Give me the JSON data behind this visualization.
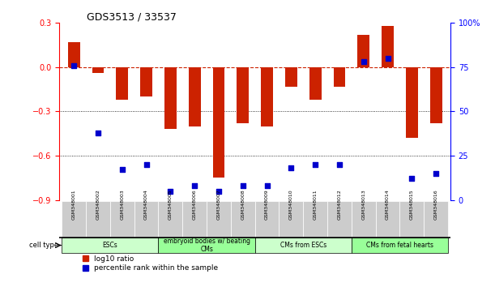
{
  "title": "GDS3513 / 33537",
  "samples": [
    "GSM348001",
    "GSM348002",
    "GSM348003",
    "GSM348004",
    "GSM348005",
    "GSM348006",
    "GSM348007",
    "GSM348008",
    "GSM348009",
    "GSM348010",
    "GSM348011",
    "GSM348012",
    "GSM348013",
    "GSM348014",
    "GSM348015",
    "GSM348016"
  ],
  "log10_ratio": [
    0.17,
    -0.04,
    -0.22,
    -0.2,
    -0.42,
    -0.4,
    -0.75,
    -0.38,
    -0.4,
    -0.13,
    -0.22,
    -0.13,
    0.22,
    0.28,
    -0.48,
    -0.38
  ],
  "percentile_rank": [
    76,
    38,
    17,
    20,
    5,
    8,
    5,
    8,
    8,
    18,
    20,
    20,
    78,
    80,
    12,
    15
  ],
  "bar_color": "#cc2200",
  "dot_color": "#0000cc",
  "ylim_left": [
    -0.9,
    0.3
  ],
  "ylim_right": [
    0,
    100
  ],
  "yticks_left": [
    -0.9,
    -0.6,
    -0.3,
    0.0,
    0.3
  ],
  "yticks_right": [
    0,
    25,
    50,
    75,
    100
  ],
  "ytick_labels_right": [
    "0",
    "25",
    "50",
    "75",
    "100%"
  ],
  "hline_y": 0.0,
  "dotted_lines": [
    -0.3,
    -0.6
  ],
  "cell_groups": [
    {
      "label": "ESCs",
      "start": 0,
      "end": 3,
      "color": "#ccffcc"
    },
    {
      "label": "embryoid bodies w/ beating\nCMs",
      "start": 4,
      "end": 7,
      "color": "#99ff99"
    },
    {
      "label": "CMs from ESCs",
      "start": 8,
      "end": 11,
      "color": "#ccffcc"
    },
    {
      "label": "CMs from fetal hearts",
      "start": 12,
      "end": 15,
      "color": "#99ff99"
    }
  ],
  "cell_type_label": "cell type",
  "legend_items": [
    {
      "color": "#cc2200",
      "label": "log10 ratio"
    },
    {
      "color": "#0000cc",
      "label": "percentile rank within the sample"
    }
  ],
  "bg_color": "#ffffff",
  "plot_bg": "#ffffff",
  "grid_color": "#cccccc",
  "sample_box_color": "#cccccc",
  "sample_text_color": "#000000"
}
